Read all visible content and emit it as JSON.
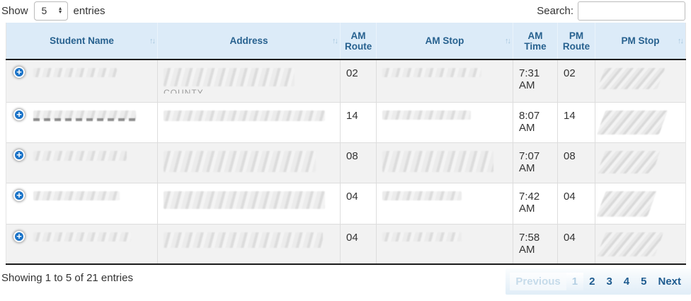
{
  "controls": {
    "show_label": "Show",
    "page_length": "5",
    "entries_label": "entries",
    "search_label": "Search:",
    "search_value": "",
    "search_placeholder": ""
  },
  "table": {
    "headers": [
      {
        "label": "Student Name"
      },
      {
        "label": "Address"
      },
      {
        "label": "AM Route"
      },
      {
        "label": "AM Stop"
      },
      {
        "label": "AM Time"
      },
      {
        "label": "PM Route"
      },
      {
        "label": "PM Stop"
      }
    ],
    "sort_glyph": "↑↓",
    "rows": [
      {
        "am_route": "02",
        "am_time": "7:31 AM",
        "pm_route": "02",
        "address_remnant": "COUNTY"
      },
      {
        "am_route": "14",
        "am_time": "8:07 AM",
        "pm_route": "14"
      },
      {
        "am_route": "08",
        "am_time": "7:07 AM",
        "pm_route": "08"
      },
      {
        "am_route": "04",
        "am_time": "7:42 AM",
        "pm_route": "04"
      },
      {
        "am_route": "04",
        "am_time": "7:58 AM",
        "pm_route": "04"
      }
    ]
  },
  "footer": {
    "info": "Showing 1 to 5 of 21 entries",
    "pagination": {
      "previous": "Previous",
      "pages": [
        "1",
        "2",
        "3",
        "4",
        "5"
      ],
      "current": "1",
      "next": "Next"
    }
  },
  "colors": {
    "header_bg": "#dcebf8",
    "header_text": "#27618f",
    "stripe_bg": "#f2f2f2",
    "expand_icon_bg": "#1a73c8",
    "pagination_active_text": "#1f5c90",
    "pagination_disabled_text": "#c6dbea",
    "dark_border": "#1c1c1c"
  }
}
